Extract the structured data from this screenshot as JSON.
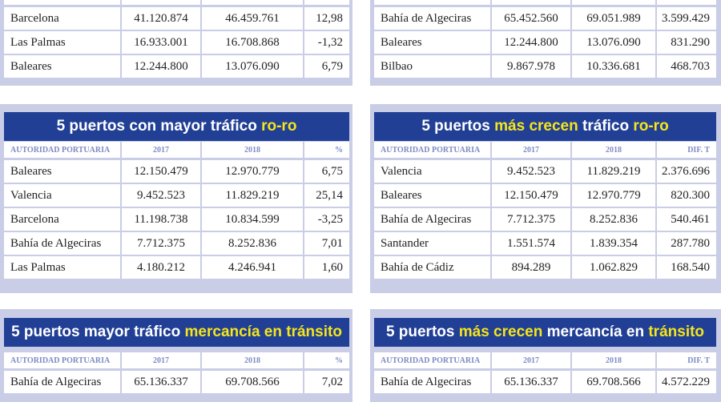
{
  "tables": [
    {
      "rows": [
        [
          "Barcelona",
          "41.120.874",
          "46.459.761",
          "12,98"
        ],
        [
          "Las Palmas",
          "16.933.001",
          "16.708.868",
          "-1,32"
        ],
        [
          "Baleares",
          "12.244.800",
          "13.076.090",
          "6,79"
        ]
      ]
    },
    {
      "rows": [
        [
          "Bahía de Algeciras",
          "65.452.560",
          "69.051.989",
          "3.599.429"
        ],
        [
          "Baleares",
          "12.244.800",
          "13.076.090",
          "831.290"
        ],
        [
          "Bilbao",
          "9.867.978",
          "10.336.681",
          "468.703"
        ]
      ]
    },
    {
      "title": [
        {
          "text": "5 puertos con mayor tráfico ",
          "highlight": false
        },
        {
          "text": "ro-ro",
          "highlight": true
        }
      ],
      "columns": [
        "AUTORIDAD PORTUARIA",
        "2017",
        "2018",
        "%"
      ],
      "rows": [
        [
          "Baleares",
          "12.150.479",
          "12.970.779",
          "6,75"
        ],
        [
          "Valencia",
          "9.452.523",
          "11.829.219",
          "25,14"
        ],
        [
          "Barcelona",
          "11.198.738",
          "10.834.599",
          "-3,25"
        ],
        [
          "Bahía de Algeciras",
          "7.712.375",
          "8.252.836",
          "7,01"
        ],
        [
          "Las Palmas",
          "4.180.212",
          "4.246.941",
          "1,60"
        ]
      ]
    },
    {
      "title": [
        {
          "text": "5 puertos ",
          "highlight": false
        },
        {
          "text": "más crecen",
          "highlight": true
        },
        {
          "text": " tráfico ",
          "highlight": false
        },
        {
          "text": "ro-ro",
          "highlight": true
        }
      ],
      "columns": [
        "AUTORIDAD PORTUARIA",
        "2017",
        "2018",
        "DIF. T"
      ],
      "rows": [
        [
          "Valencia",
          "9.452.523",
          "11.829.219",
          "2.376.696"
        ],
        [
          "Baleares",
          "12.150.479",
          "12.970.779",
          "820.300"
        ],
        [
          "Bahía de Algeciras",
          "7.712.375",
          "8.252.836",
          "540.461"
        ],
        [
          "Santander",
          "1.551.574",
          "1.839.354",
          "287.780"
        ],
        [
          "Bahía de Cádiz",
          "894.289",
          "1.062.829",
          "168.540"
        ]
      ]
    },
    {
      "title": [
        {
          "text": "5 puertos mayor tráfico ",
          "highlight": false
        },
        {
          "text": "mercancía en tránsito",
          "highlight": true
        }
      ],
      "columns": [
        "AUTORIDAD PORTUARIA",
        "2017",
        "2018",
        "%"
      ],
      "rows": [
        [
          "Bahía de Algeciras",
          "65.136.337",
          "69.708.566",
          "7,02"
        ]
      ]
    },
    {
      "title": [
        {
          "text": "5 puertos ",
          "highlight": false
        },
        {
          "text": "más crecen",
          "highlight": true
        },
        {
          "text": " mercancía en ",
          "highlight": false
        },
        {
          "text": "tránsito",
          "highlight": true
        }
      ],
      "columns": [
        "AUTORIDAD PORTUARIA",
        "2017",
        "2018",
        "DIF. T"
      ],
      "rows": [
        [
          "Bahía de Algeciras",
          "65.136.337",
          "69.708.566",
          "4.572.229"
        ]
      ]
    }
  ]
}
